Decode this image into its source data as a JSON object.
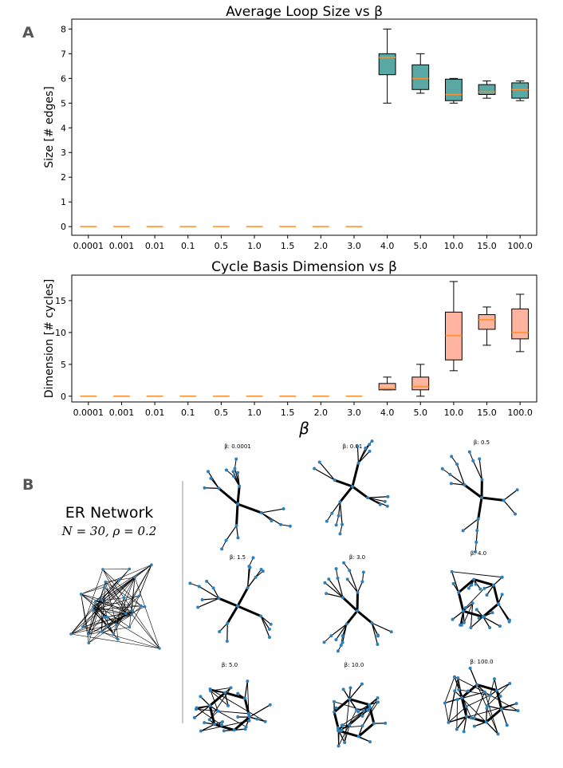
{
  "panels": {
    "a": "A",
    "b": "B"
  },
  "chart_data": [
    {
      "type": "box",
      "title": "Average Loop Size vs β",
      "ylabel": "Size [# edges]",
      "xlabel": "β",
      "categories": [
        "0.0001",
        "0.001",
        "0.01",
        "0.1",
        "0.5",
        "1.0",
        "1.5",
        "2.0",
        "3.0",
        "4.0",
        "5.0",
        "10.0",
        "15.0",
        "100.0"
      ],
      "ylim": [
        -0.35,
        8.4
      ],
      "yticks": [
        0,
        1,
        2,
        3,
        4,
        5,
        6,
        7,
        8
      ],
      "box_color": "#5aa8a4",
      "median_color": "#ff8c2a",
      "boxes": [
        {
          "whislo": 0,
          "q1": 0,
          "med": 0,
          "q3": 0,
          "whishi": 0
        },
        {
          "whislo": 0,
          "q1": 0,
          "med": 0,
          "q3": 0,
          "whishi": 0
        },
        {
          "whislo": 0,
          "q1": 0,
          "med": 0,
          "q3": 0,
          "whishi": 0
        },
        {
          "whislo": 0,
          "q1": 0,
          "med": 0,
          "q3": 0,
          "whishi": 0
        },
        {
          "whislo": 0,
          "q1": 0,
          "med": 0,
          "q3": 0,
          "whishi": 0
        },
        {
          "whislo": 0,
          "q1": 0,
          "med": 0,
          "q3": 0,
          "whishi": 0
        },
        {
          "whislo": 0,
          "q1": 0,
          "med": 0,
          "q3": 0,
          "whishi": 0
        },
        {
          "whislo": 0,
          "q1": 0,
          "med": 0,
          "q3": 0,
          "whishi": 0
        },
        {
          "whislo": 0,
          "q1": 0,
          "med": 0,
          "q3": 0,
          "whishi": 0
        },
        {
          "whislo": 5.0,
          "q1": 6.15,
          "med": 6.85,
          "q3": 7.0,
          "whishi": 8.0
        },
        {
          "whislo": 5.4,
          "q1": 5.55,
          "med": 6.0,
          "q3": 6.55,
          "whishi": 7.0
        },
        {
          "whislo": 5.0,
          "q1": 5.1,
          "med": 5.35,
          "q3": 5.97,
          "whishi": 6.0
        },
        {
          "whislo": 5.2,
          "q1": 5.35,
          "med": 5.45,
          "q3": 5.75,
          "whishi": 5.9
        },
        {
          "whislo": 5.1,
          "q1": 5.2,
          "med": 5.55,
          "q3": 5.82,
          "whishi": 5.9
        }
      ]
    },
    {
      "type": "box",
      "title": "Cycle Basis Dimension vs β",
      "ylabel": "Dimension [# cycles]",
      "xlabel": "β",
      "categories": [
        "0.0001",
        "0.001",
        "0.01",
        "0.1",
        "0.5",
        "1.0",
        "1.5",
        "2.0",
        "3.0",
        "4.0",
        "5.0",
        "10.0",
        "15.0",
        "100.0"
      ],
      "ylim": [
        -0.9,
        19
      ],
      "yticks": [
        0,
        5,
        10,
        15
      ],
      "box_color": "#ffb4a0",
      "median_color": "#ff8c2a",
      "boxes": [
        {
          "whislo": 0,
          "q1": 0,
          "med": 0,
          "q3": 0,
          "whishi": 0
        },
        {
          "whislo": 0,
          "q1": 0,
          "med": 0,
          "q3": 0,
          "whishi": 0
        },
        {
          "whislo": 0,
          "q1": 0,
          "med": 0,
          "q3": 0,
          "whishi": 0
        },
        {
          "whislo": 0,
          "q1": 0,
          "med": 0,
          "q3": 0,
          "whishi": 0
        },
        {
          "whislo": 0,
          "q1": 0,
          "med": 0,
          "q3": 0,
          "whishi": 0
        },
        {
          "whislo": 0,
          "q1": 0,
          "med": 0,
          "q3": 0,
          "whishi": 0
        },
        {
          "whislo": 0,
          "q1": 0,
          "med": 0,
          "q3": 0,
          "whishi": 0
        },
        {
          "whislo": 0,
          "q1": 0,
          "med": 0,
          "q3": 0,
          "whishi": 0
        },
        {
          "whislo": 0,
          "q1": 0,
          "med": 0,
          "q3": 0,
          "whishi": 0
        },
        {
          "whislo": 1,
          "q1": 1,
          "med": 1.2,
          "q3": 2,
          "whishi": 3
        },
        {
          "whislo": 0,
          "q1": 1,
          "med": 1.5,
          "q3": 3,
          "whishi": 5
        },
        {
          "whislo": 4,
          "q1": 5.7,
          "med": 9.5,
          "q3": 13.2,
          "whishi": 18
        },
        {
          "whislo": 8,
          "q1": 10.5,
          "med": 12,
          "q3": 12.8,
          "whishi": 14
        },
        {
          "whislo": 7,
          "q1": 9,
          "med": 10,
          "q3": 13.7,
          "whishi": 16
        }
      ]
    }
  ],
  "er_network": {
    "title": "ER Network",
    "params": "N = 30,  ρ = 0.2"
  },
  "graph_titles": [
    "β: 0.0001",
    "β: 0.01",
    "β: 0.5",
    "β: 1.5",
    "β: 3.0",
    "β: 4.0",
    "β: 5.0",
    "β: 10.0",
    "β: 100.0"
  ],
  "colors": {
    "node": "#2f7fb8",
    "edge": "#000000",
    "divider": "#cccccc"
  }
}
